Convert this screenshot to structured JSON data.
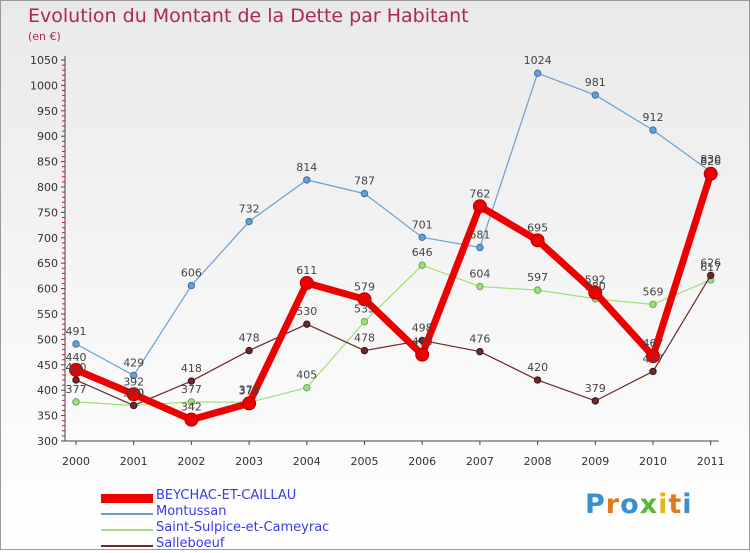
{
  "title": "Evolution du Montant de la Dette par Habitant",
  "subtitle": "(en €)",
  "logo": "Proxiti",
  "chart_data": {
    "type": "line",
    "title": "Evolution du Montant de la Dette par Habitant",
    "ylabel": "(en €)",
    "xlabel": "",
    "x": [
      "2000",
      "2001",
      "2002",
      "2003",
      "2004",
      "2005",
      "2006",
      "2007",
      "2008",
      "2009",
      "2010",
      "2011"
    ],
    "ylim": [
      300,
      1050
    ],
    "yticks": [
      300,
      350,
      400,
      450,
      500,
      550,
      600,
      650,
      700,
      750,
      800,
      850,
      900,
      950,
      1000,
      1050
    ],
    "grid": false,
    "legend_position": "bottom-left",
    "series": [
      {
        "name": "BEYCHAC-ET-CAILLAU",
        "color": "#ee0000",
        "values": [
          440,
          392,
          342,
          374,
          611,
          579,
          470,
          762,
          695,
          592,
          467,
          826
        ]
      },
      {
        "name": "Montussan",
        "color": "#6b9fd0",
        "values": [
          491,
          429,
          606,
          732,
          814,
          787,
          701,
          681,
          1024,
          981,
          912,
          830
        ]
      },
      {
        "name": "Saint-Sulpice-et-Cameyrac",
        "color": "#9ee07a",
        "values": [
          377,
          370,
          377,
          376,
          405,
          535,
          646,
          604,
          597,
          580,
          569,
          617
        ]
      },
      {
        "name": "Salleboeuf",
        "color": "#6a2a2a",
        "values": [
          420,
          370,
          418,
          478,
          530,
          478,
          498,
          476,
          420,
          379,
          437,
          626
        ]
      }
    ]
  }
}
